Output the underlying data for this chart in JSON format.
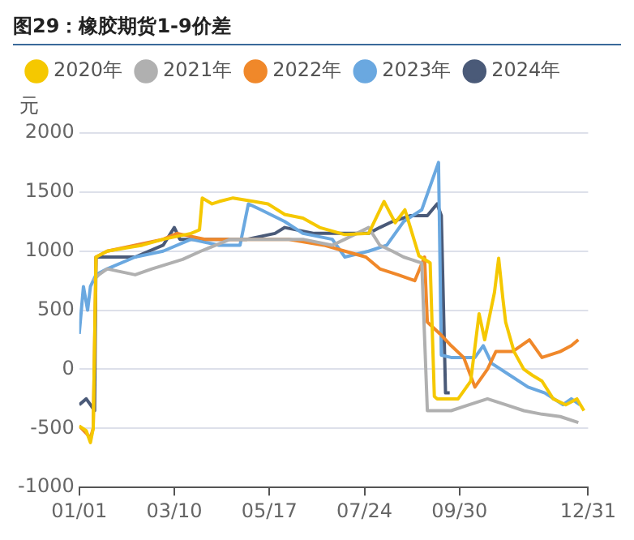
{
  "chart_data": {
    "type": "line",
    "title": "图29：橡胶期货1-9价差",
    "ylabel": "元",
    "xlim": [
      "--01-01",
      "--12-31"
    ],
    "xticks": [
      {
        "value": "--01-01",
        "label": "01/01"
      },
      {
        "value": "--03-10",
        "label": "03/10"
      },
      {
        "value": "--05-17",
        "label": "05/17"
      },
      {
        "value": "--07-24",
        "label": "07/24"
      },
      {
        "value": "--09-30",
        "label": "09/30"
      },
      {
        "value": "--12-31",
        "label": "12/31"
      }
    ],
    "ylim": [
      -1000,
      2000
    ],
    "yticks": [
      -1000,
      -500,
      0,
      500,
      1000,
      1500,
      2000
    ],
    "grid": "y",
    "legend": "top",
    "marker": "none",
    "line_style": "solid",
    "series": [
      {
        "name": "2020年",
        "color": "#f5c800",
        "x": [
          "--01-01",
          "--01-06",
          "--01-09",
          "--01-11",
          "--01-13",
          "--01-21",
          "--01-31",
          "--02-15",
          "--03-02",
          "--03-22",
          "--03-28",
          "--03-30",
          "--04-06",
          "--04-11",
          "--04-21",
          "--05-06",
          "--05-16",
          "--05-28",
          "--06-10",
          "--06-22",
          "--07-10",
          "--07-27",
          "--08-07",
          "--08-15",
          "--08-22",
          "--09-01",
          "--09-09",
          "--09-12",
          "--09-14",
          "--09-29",
          "--10-08",
          "--10-14",
          "--10-18",
          "--10-25",
          "--10-28",
          "--10-31",
          "--11-02",
          "--11-08",
          "--11-15",
          "--11-21",
          "--11-28",
          "--12-06",
          "--12-15",
          "--12-23",
          "--12-28"
        ],
        "values": [
          -480,
          -520,
          -620,
          -500,
          950,
          1000,
          1020,
          1050,
          1100,
          1150,
          1180,
          1450,
          1400,
          1420,
          1450,
          1420,
          1400,
          1310,
          1280,
          1200,
          1140,
          1150,
          1420,
          1240,
          1350,
          960,
          900,
          -230,
          -250,
          -250,
          -100,
          470,
          250,
          650,
          940,
          600,
          400,
          150,
          0,
          -50,
          -100,
          -250,
          -300,
          -250,
          -350
        ]
      },
      {
        "name": "2021年",
        "color": "#b0b0b0",
        "x": [
          "--01-11",
          "--01-15",
          "--01-21",
          "--02-10",
          "--02-22",
          "--03-16",
          "--03-29",
          "--04-19",
          "--05-19",
          "--06-10",
          "--07-01",
          "--07-10",
          "--07-27",
          "--08-04",
          "--08-13",
          "--08-21",
          "--09-03",
          "--09-07",
          "--09-24",
          "--10-07",
          "--10-20",
          "--11-02",
          "--11-15",
          "--11-28",
          "--12-11",
          "--12-24"
        ],
        "values": [
          750,
          800,
          850,
          800,
          850,
          930,
          1000,
          1100,
          1100,
          1100,
          1050,
          1100,
          1200,
          1050,
          1000,
          950,
          900,
          -350,
          -350,
          -300,
          -250,
          -300,
          -350,
          -380,
          -400,
          -450
        ]
      },
      {
        "name": "2022年",
        "color": "#f0882a",
        "x": [
          "--01-01",
          "--01-09",
          "--01-11",
          "--01-13",
          "--01-21",
          "--02-10",
          "--03-02",
          "--03-12",
          "--04-01",
          "--04-21",
          "--05-11",
          "--05-31",
          "--06-25",
          "--07-10",
          "--07-25",
          "--08-04",
          "--08-17",
          "--08-29",
          "--09-05",
          "--09-07",
          "--09-16",
          "--09-24",
          "--10-03",
          "--10-11",
          "--10-20",
          "--10-26",
          "--11-07",
          "--11-19",
          "--11-28",
          "--12-11",
          "--12-19",
          "--12-24"
        ],
        "values": [
          -480,
          -580,
          -500,
          950,
          1000,
          1050,
          1100,
          1150,
          1100,
          1100,
          1100,
          1100,
          1050,
          1000,
          950,
          850,
          800,
          750,
          950,
          400,
          300,
          200,
          100,
          -150,
          0,
          150,
          150,
          250,
          100,
          150,
          200,
          250
        ]
      },
      {
        "name": "2023年",
        "color": "#6aa8e0",
        "x": [
          "--01-01",
          "--01-04",
          "--01-07",
          "--01-09",
          "--01-13",
          "--01-21",
          "--02-10",
          "--03-02",
          "--03-22",
          "--04-11",
          "--04-26",
          "--05-02",
          "--05-11",
          "--05-28",
          "--06-10",
          "--07-01",
          "--07-10",
          "--07-27",
          "--08-09",
          "--08-21",
          "--09-03",
          "--09-15",
          "--09-17",
          "--09-24",
          "--10-11",
          "--10-17",
          "--10-23",
          "--11-05",
          "--11-18",
          "--11-30",
          "--12-13",
          "--12-19",
          "--12-25"
        ],
        "values": [
          300,
          700,
          500,
          700,
          800,
          850,
          950,
          1000,
          1100,
          1050,
          1050,
          1400,
          1350,
          1250,
          1150,
          1100,
          950,
          1000,
          1050,
          1250,
          1350,
          1750,
          120,
          100,
          100,
          200,
          50,
          -50,
          -150,
          -200,
          -300,
          -250,
          -300
        ]
      },
      {
        "name": "2024年",
        "color": "#4a5a78",
        "x": [
          "--01-01",
          "--01-06",
          "--01-09",
          "--01-12",
          "--01-13",
          "--01-21",
          "--02-10",
          "--03-02",
          "--03-10",
          "--03-14",
          "--04-11",
          "--05-01",
          "--05-21",
          "--05-28",
          "--06-18",
          "--07-10",
          "--07-27",
          "--08-04",
          "--08-13",
          "--08-26",
          "--09-07",
          "--09-14",
          "--09-17",
          "--09-20",
          "--09-23"
        ],
        "values": [
          -300,
          -250,
          -300,
          -350,
          950,
          950,
          950,
          1050,
          1200,
          1100,
          1100,
          1100,
          1150,
          1200,
          1150,
          1150,
          1150,
          1200,
          1250,
          1300,
          1300,
          1400,
          1300,
          -200,
          -200
        ]
      }
    ]
  }
}
